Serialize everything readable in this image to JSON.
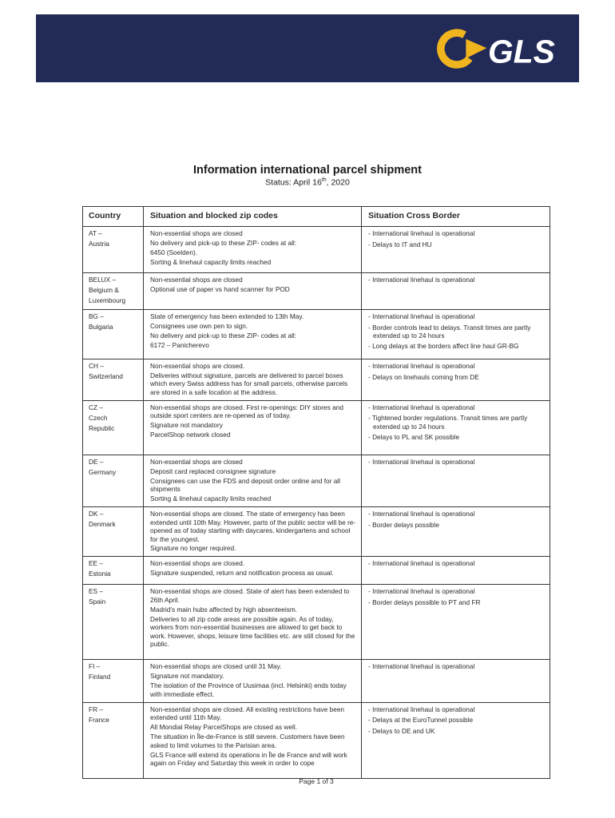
{
  "brand_colors": {
    "navy": "#222a57",
    "yellow": "#f0b41e",
    "logo_text_color": "#ffffff"
  },
  "header": {
    "logo_text": "GLS"
  },
  "document": {
    "title": "Information international parcel shipment",
    "status_prefix": "Status: April 16",
    "status_superscript": "th",
    "status_suffix": ", 2020",
    "footer": "Page 1 of 3"
  },
  "table": {
    "headers": [
      "Country",
      "Situation and blocked zip codes",
      "Situation Cross Border"
    ],
    "rows": [
      {
        "country": [
          "AT –",
          "Austria"
        ],
        "situation": [
          "Non-essential shops are closed",
          "No delivery and pick-up to these ZIP- codes at all:",
          "6450 (Soelden).",
          "Sorting & linehaul capacity limits reached"
        ],
        "cross_border": [
          "- International linehaul is operational",
          "- Delays to IT and HU"
        ]
      },
      {
        "country": [
          "BELUX –",
          "Belgium &",
          "Luxembourg"
        ],
        "situation": [
          "Non-essential shops are closed",
          "Optional use of paper vs hand scanner for POD"
        ],
        "cross_border": [
          "- International linehaul is operational"
        ]
      },
      {
        "country": [
          "BG –",
          "Bulgaria"
        ],
        "situation": [
          "State of emergency has been extended to 13th May.",
          "Consignees use own pen to sign.",
          "No delivery and pick-up to these ZIP- codes at all:",
          "6172 – Panicherevo"
        ],
        "cross_border": [
          "- International linehaul is operational",
          "- Border controls lead to delays. Transit times are partly extended up to 24 hours",
          "- Long delays at the borders affect line haul GR-BG"
        ]
      },
      {
        "country": [
          "CH –",
          "Switzerland"
        ],
        "situation": [
          "Non-essential shops are closed.",
          "Deliveries without signature, parcels are delivered to parcel boxes which every Swiss address has for small parcels, otherwise parcels are stored in a safe location at the address."
        ],
        "cross_border": [
          "- International linehaul is operational",
          "- Delays on linehauls coming from DE"
        ]
      },
      {
        "country": [
          "CZ –",
          "Czech",
          "Republic"
        ],
        "situation": [
          "Non-essential shops are closed. First re-openings: DIY stores and outside sport centers are re-opened as of today.",
          "Signature not mandatory",
          "ParcelShop network closed"
        ],
        "cross_border": [
          "- International linehaul is operational",
          "- Tightened border regulations. Transit times are partly extended up to 24 hours",
          "- Delays to PL and SK possible"
        ]
      },
      {
        "country": [
          "DE –",
          "Germany"
        ],
        "situation": [
          "Non-essential shops are closed",
          "Deposit card replaced consignee signature",
          "Consignees can use the FDS and deposit order online and for all shipments",
          "Sorting & linehaul capacity limits reached"
        ],
        "cross_border": [
          "- International linehaul is operational"
        ]
      },
      {
        "country": [
          "DK –",
          "Denmark"
        ],
        "situation": [
          "Non-essential shops are closed. The state of emergency has been extended until 10th May. However, parts of the public sector will be re-opened as of today starting with daycares, kindergartens and school for the youngest.",
          "Signature no longer required."
        ],
        "cross_border": [
          "- International linehaul is operational",
          "- Border delays possible"
        ]
      },
      {
        "country": [
          "EE –",
          "Estonia"
        ],
        "situation": [
          "Non-essential shops are closed.",
          "Signature suspended, return and notification process as usual."
        ],
        "cross_border": [
          "- International linehaul is operational"
        ]
      },
      {
        "country": [
          "ES –",
          "Spain"
        ],
        "situation": [
          "Non-essential shops are closed. State of alert has been extended to 26th April.",
          "Madrid's main hubs affected by high absenteeism.",
          "Deliveries to all zip code areas are possible again. As of today, workers from non-essential businesses are allowed to get back to work. However, shops, leisure time facilities etc. are still closed for the public."
        ],
        "cross_border": [
          "- International linehaul is operational",
          "- Border delays possible to PT and FR"
        ]
      },
      {
        "country": [
          "FI –",
          "Finland"
        ],
        "situation": [
          "Non-essential shops are closed until 31 May.",
          "Signature not mandatory.",
          "The isolation of the Province of Uusimaa (incl. Helsinki) ends today with immediate effect."
        ],
        "cross_border": [
          "- International linehaul is operational"
        ]
      },
      {
        "country": [
          "FR –",
          "France"
        ],
        "situation": [
          "Non-essential shops are closed. All existing restrictions have been extended until 11th May.",
          "All Mondial Relay ParcelShops are closed as well.",
          "The situation in Île-de-France is still severe. Customers have been asked to limit volumes to the Parisian area.",
          "GLS France will extend its operations in Île de France and will work again on Friday and Saturday this week in order to cope"
        ],
        "cross_border": [
          "- International linehaul is operational",
          "- Delays at the EuroTunnel possible",
          "- Delays to DE and UK"
        ]
      }
    ]
  }
}
